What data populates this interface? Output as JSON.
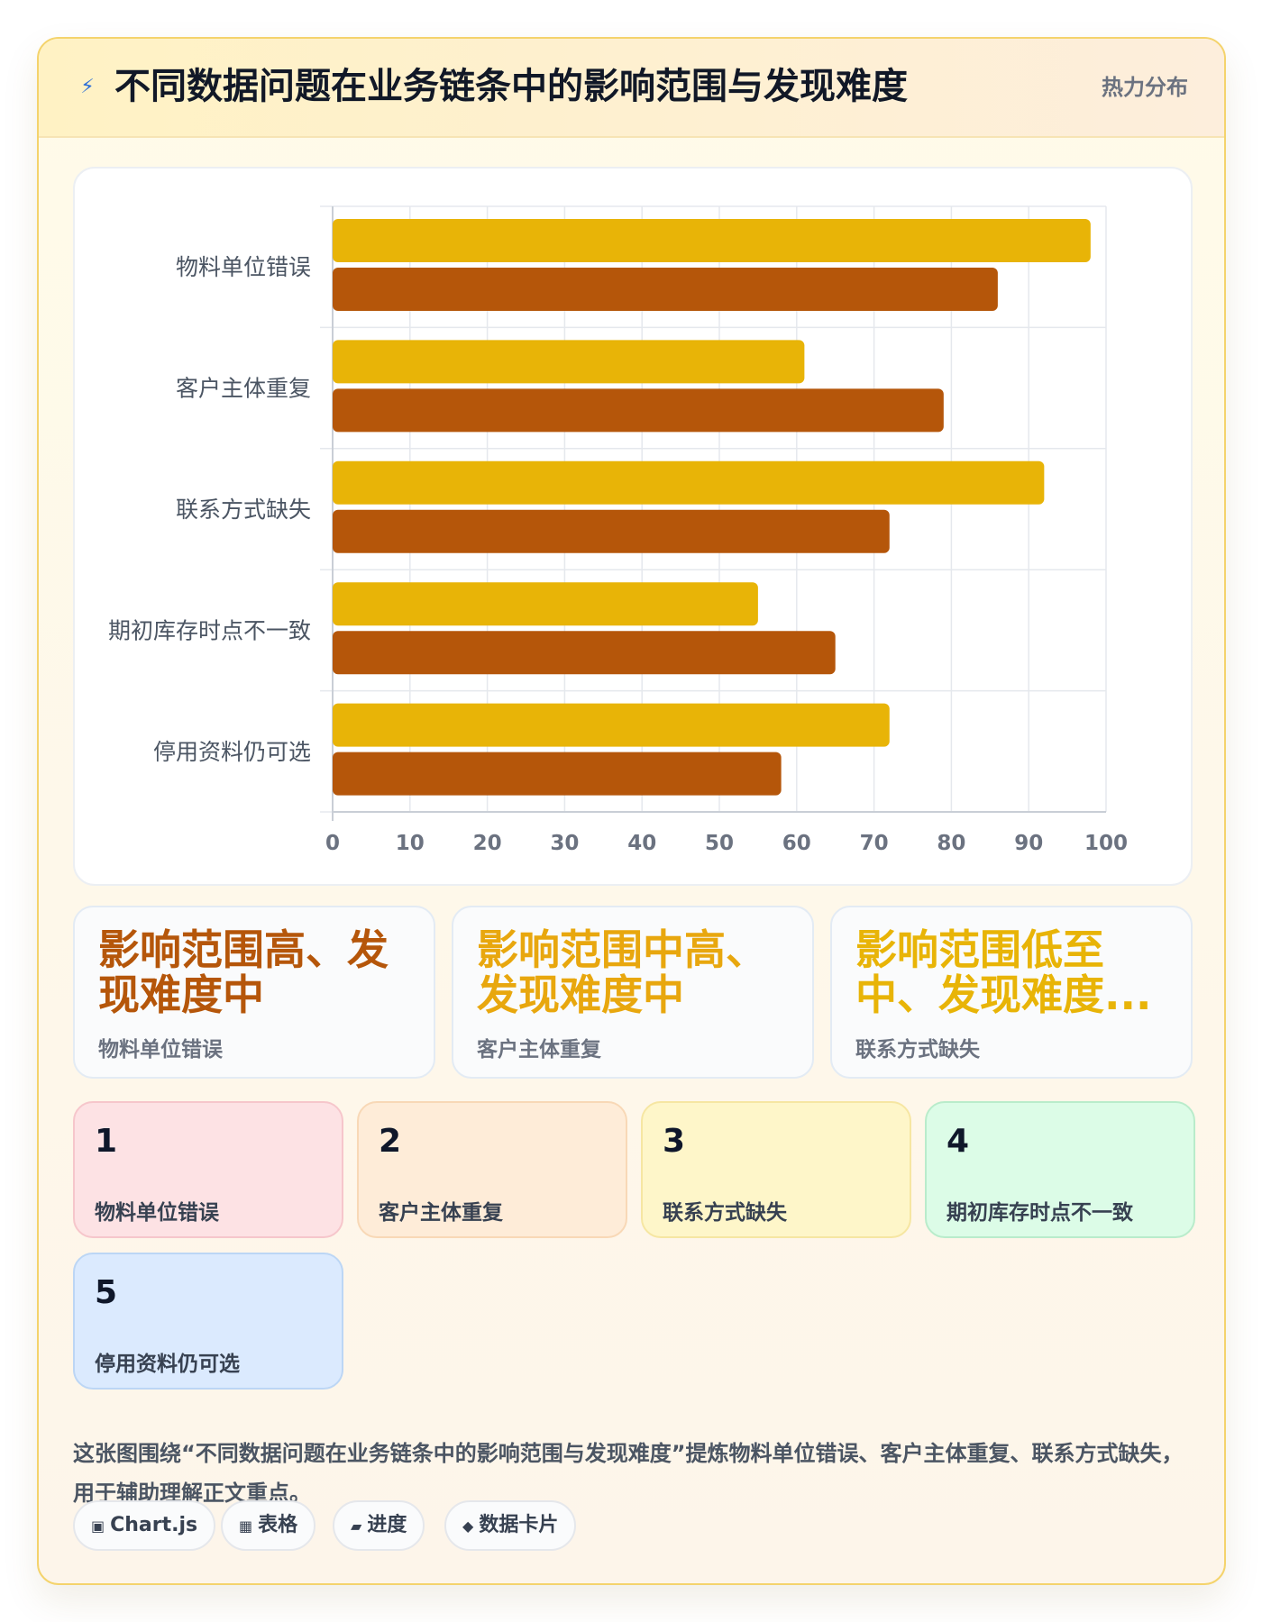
{
  "header": {
    "icon": "lightning-icon",
    "title": "不同数据问题在业务链条中的影响范围与发现难度",
    "tag": "热力分布"
  },
  "chart_data": {
    "type": "bar",
    "orientation": "horizontal",
    "categories": [
      "物料单位错误",
      "客户主体重复",
      "联系方式缺失",
      "期初库存时点不一致",
      "停用资料仍可选"
    ],
    "series": [
      {
        "color": "#e8b407",
        "values": [
          98,
          61,
          92,
          55,
          72
        ]
      },
      {
        "color": "#b5560a",
        "values": [
          86,
          79,
          72,
          65,
          58
        ]
      }
    ],
    "xlim": [
      0,
      100
    ],
    "xticks": [
      0,
      10,
      20,
      30,
      40,
      50,
      60,
      70,
      80,
      90,
      100
    ],
    "grid": true,
    "legend": "none"
  },
  "callouts": [
    {
      "value": "影响范围高、发现难度中",
      "label": "物料单位错误",
      "color": "#b5560a"
    },
    {
      "value": "影响范围中高、发现难度中",
      "label": "客户主体重复",
      "color": "#e8a70e"
    },
    {
      "value": "影响范围低至中、发现难度...",
      "label": "联系方式缺失",
      "color": "#e8b407"
    }
  ],
  "tiles": [
    {
      "num": "1",
      "label": "物料单位错误",
      "bg": "#fde2e4",
      "border": "#f6c6cb"
    },
    {
      "num": "2",
      "label": "客户主体重复",
      "bg": "#feecd8",
      "border": "#f8d8b6"
    },
    {
      "num": "3",
      "label": "联系方式缺失",
      "bg": "#fef6c9",
      "border": "#f6e6a2"
    },
    {
      "num": "4",
      "label": "期初库存时点不一致",
      "bg": "#dcfce7",
      "border": "#b9eccb"
    },
    {
      "num": "5",
      "label": "停用资料仍可选",
      "bg": "#dbeafe",
      "border": "#bcd6f5"
    }
  ],
  "description": "这张图围绕“不同数据问题在业务链条中的影响范围与发现难度”提炼物料单位错误、客户主体重复、联系方式缺失，用于辅助理解正文重点。",
  "chips": [
    {
      "icon": "▣",
      "icon_name": "chart-icon",
      "label": "Chart.js"
    },
    {
      "icon": "▦",
      "icon_name": "table-icon",
      "label": "表格"
    },
    {
      "icon": "▰",
      "icon_name": "progress-icon",
      "label": "进度"
    },
    {
      "icon": "◆",
      "icon_name": "diamond-icon",
      "label": "数据卡片"
    }
  ]
}
